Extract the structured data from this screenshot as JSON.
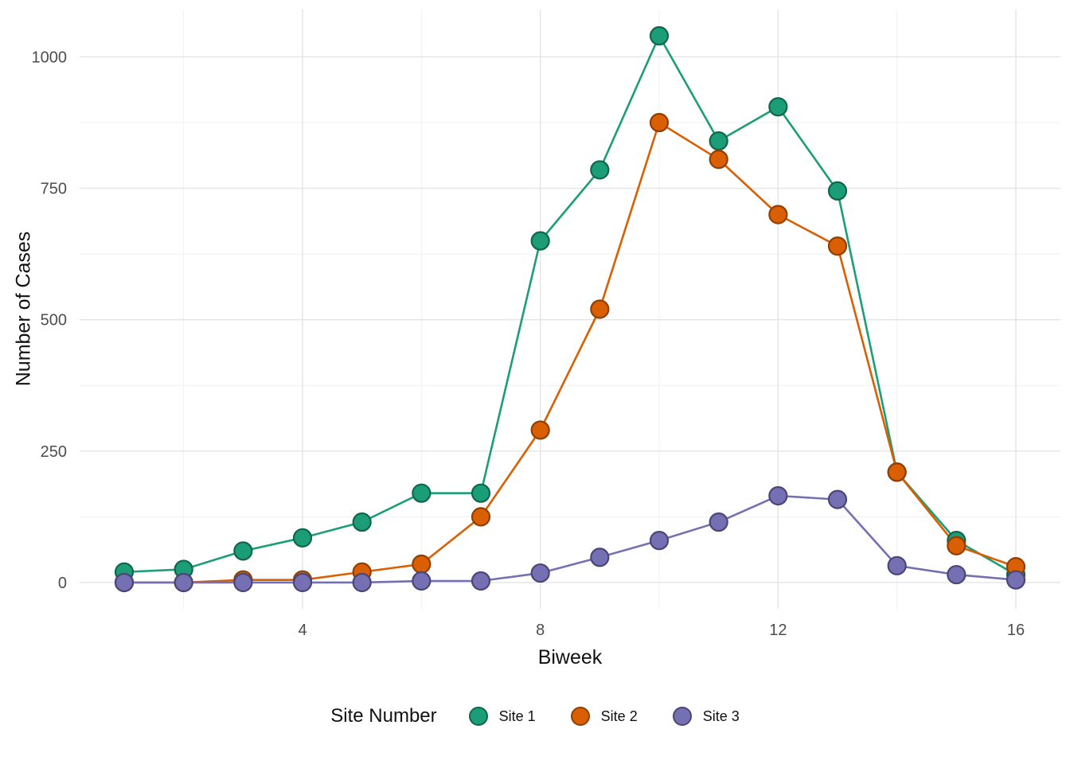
{
  "chart_data": {
    "type": "line",
    "title": "",
    "xlabel": "Biweek",
    "ylabel": "Number of Cases",
    "legend_title": "Site Number",
    "legend_position": "bottom",
    "grid": true,
    "background": "#FFFFFF",
    "grid_major_color": "#E4E4E4",
    "grid_minor_color": "#EFEFEF",
    "tick_label_color": "#4D4D4D",
    "x": [
      1,
      2,
      3,
      4,
      5,
      6,
      7,
      8,
      9,
      10,
      11,
      12,
      13,
      14,
      15,
      16
    ],
    "x_ticks": [
      4,
      8,
      12,
      16
    ],
    "x_minor": [
      2,
      6,
      10,
      14
    ],
    "y_ticks": [
      0,
      250,
      500,
      750,
      1000
    ],
    "y_minor": [
      125,
      375,
      625,
      875
    ],
    "xlim": [
      0.25,
      16.75
    ],
    "ylim": [
      -50,
      1090
    ],
    "series": [
      {
        "name": "Site 1",
        "color": "#1B9E77",
        "stroke": "#11654C",
        "values": [
          20,
          25,
          60,
          85,
          115,
          170,
          170,
          650,
          785,
          1040,
          840,
          905,
          745,
          210,
          80,
          15
        ]
      },
      {
        "name": "Site 2",
        "color": "#D95F02",
        "stroke": "#8F3F01",
        "values": [
          0,
          0,
          5,
          5,
          20,
          35,
          125,
          290,
          520,
          875,
          805,
          700,
          640,
          210,
          70,
          30
        ]
      },
      {
        "name": "Site 3",
        "color": "#7570B3",
        "stroke": "#4A4676",
        "values": [
          0,
          0,
          0,
          0,
          0,
          3,
          3,
          18,
          48,
          80,
          115,
          165,
          158,
          32,
          15,
          5
        ]
      }
    ]
  }
}
